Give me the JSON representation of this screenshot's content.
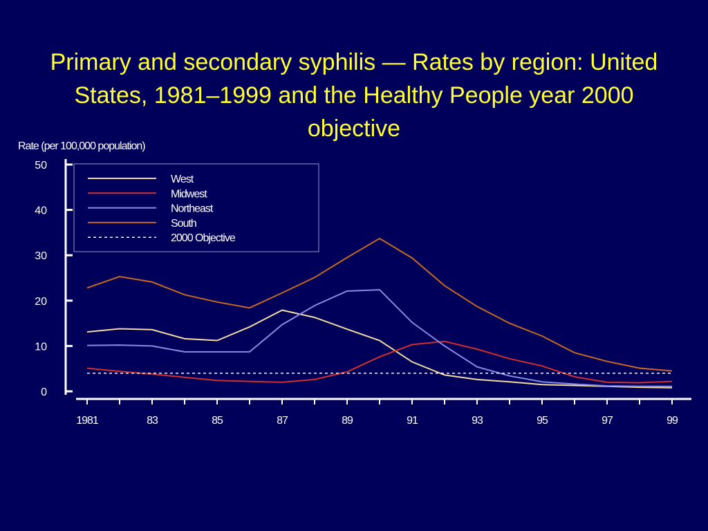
{
  "slide": {
    "title": "Primary and secondary syphilis  —  Rates by region: United States, 1981–1999 and the Healthy People year 2000 objective"
  },
  "colors": {
    "background": "#00005b",
    "title": "#ffff33",
    "axis": "#ffffff",
    "West": "#f2dca0",
    "Midwest": "#d0302c",
    "Northeast": "#8a8ae8",
    "South": "#c96a22",
    "Objective": "#ffffff"
  },
  "chart_data": {
    "type": "line",
    "title": "Primary and secondary syphilis  —  Rates by region: United States, 1981–1999 and the Healthy People year 2000 objective",
    "xlabel": "",
    "ylabel": "Rate (per 100,000 population)",
    "ylim": [
      0,
      50
    ],
    "yticks": [
      0,
      10,
      20,
      30,
      40,
      50
    ],
    "xlim": [
      1981,
      1999
    ],
    "xticks": [
      1981,
      1983,
      1985,
      1987,
      1989,
      1991,
      1993,
      1995,
      1997,
      1999
    ],
    "xtick_labels": [
      "1981",
      "83",
      "85",
      "87",
      "89",
      "91",
      "93",
      "95",
      "97",
      "99"
    ],
    "x": [
      1981,
      1982,
      1983,
      1984,
      1985,
      1986,
      1987,
      1988,
      1989,
      1990,
      1991,
      1992,
      1993,
      1994,
      1995,
      1996,
      1997,
      1998,
      1999
    ],
    "grid": false,
    "legend": "top-left",
    "series": [
      {
        "name": "West",
        "style": "solid",
        "values": [
          13.1,
          13.8,
          13.6,
          11.6,
          11.2,
          14.2,
          17.9,
          16.3,
          13.7,
          11.2,
          6.5,
          3.6,
          2.6,
          2.1,
          1.5,
          1.3,
          1.1,
          0.9,
          0.8
        ]
      },
      {
        "name": "Midwest",
        "style": "solid",
        "values": [
          5.1,
          4.4,
          3.8,
          3.1,
          2.4,
          2.2,
          2.0,
          2.6,
          4.3,
          7.6,
          10.3,
          11.0,
          9.3,
          7.2,
          5.6,
          3.2,
          2.0,
          1.9,
          2.2
        ]
      },
      {
        "name": "Northeast",
        "style": "solid",
        "values": [
          10.1,
          10.2,
          10.0,
          8.7,
          8.7,
          8.7,
          14.7,
          18.9,
          22.1,
          22.4,
          15.2,
          10.0,
          5.4,
          3.4,
          2.1,
          1.6,
          1.2,
          1.1,
          1.1
        ]
      },
      {
        "name": "South",
        "style": "solid",
        "values": [
          22.8,
          25.3,
          24.1,
          21.3,
          19.7,
          18.4,
          21.7,
          25.1,
          29.5,
          33.7,
          29.4,
          23.3,
          18.7,
          15.0,
          12.2,
          8.5,
          6.6,
          5.1,
          4.5
        ]
      },
      {
        "name": "2000 Objective",
        "style": "dashed",
        "values": [
          4.0,
          4.0,
          4.0,
          4.0,
          4.0,
          4.0,
          4.0,
          4.0,
          4.0,
          4.0,
          4.0,
          4.0,
          4.0,
          4.0,
          4.0,
          4.0,
          4.0,
          4.0,
          4.0
        ]
      }
    ]
  }
}
